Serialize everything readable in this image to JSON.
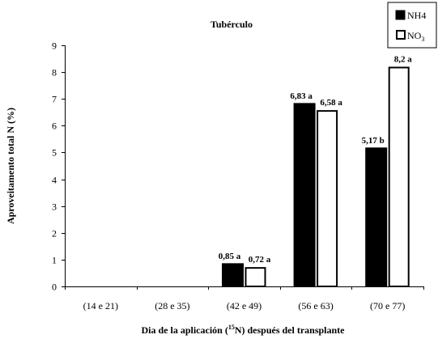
{
  "chart_data": {
    "type": "bar",
    "title": "Tubérculo",
    "ylabel": "Aproveitamento total N (%)",
    "xlabel": {
      "before": "Dia de la aplicación (",
      "sup": "15",
      "mid": "N) después del transplante"
    },
    "categories": [
      "(14 e 21)",
      "(28 e 35)",
      "(42 e 49)",
      "(56 e 63)",
      "(70 e 77)"
    ],
    "ylim": [
      0,
      9
    ],
    "yticks": [
      "0",
      "1",
      "2",
      "3",
      "4",
      "5",
      "6",
      "7",
      "8",
      "9"
    ],
    "series": [
      {
        "name": "NH4",
        "color": "#000000",
        "fill": "solid",
        "values": [
          null,
          null,
          0.85,
          6.83,
          5.17
        ],
        "labels": [
          "",
          "",
          "0,85 a",
          "6,83 a",
          "5,17 b"
        ]
      },
      {
        "name": "NO3",
        "name_parts": {
          "base": "NO",
          "sub": "3"
        },
        "color": "#000000",
        "fill": "hollow",
        "values": [
          null,
          null,
          0.72,
          6.58,
          8.2
        ],
        "labels": [
          "",
          "",
          "0,72 a",
          "6,58 a",
          "8,2 a"
        ]
      }
    ],
    "grid": false,
    "legend_position": "top-right"
  }
}
